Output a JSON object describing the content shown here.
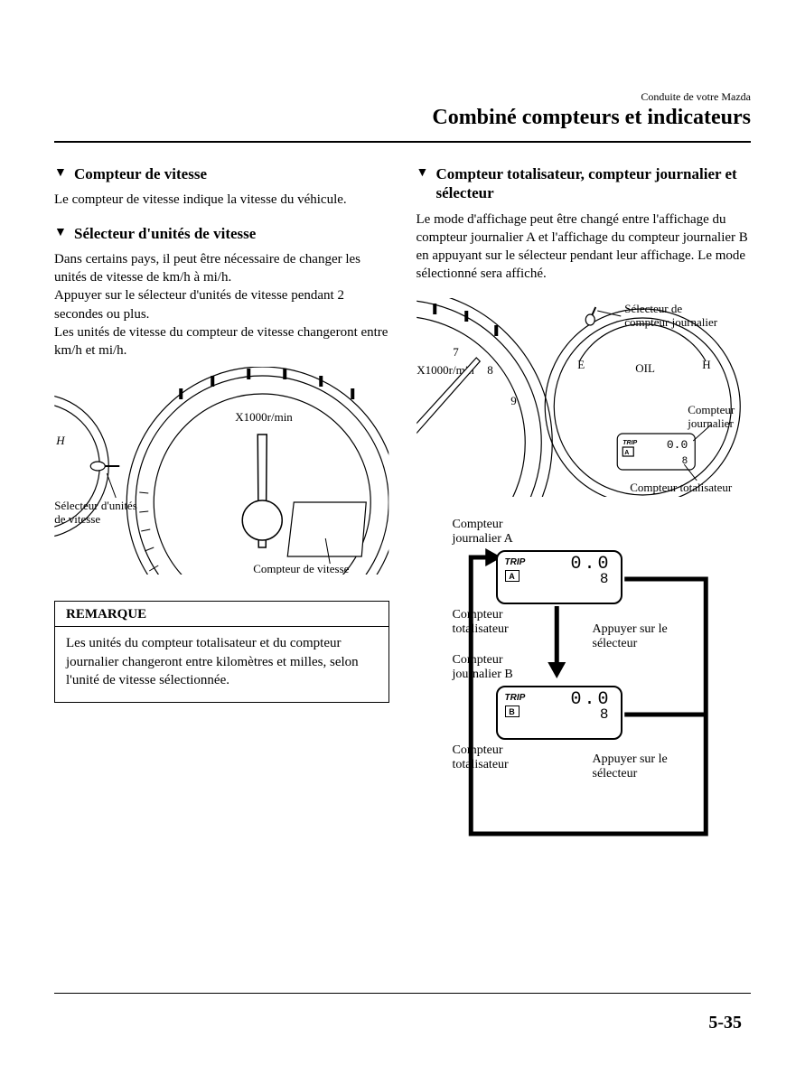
{
  "header": {
    "small": "Conduite de votre Mazda",
    "title": "Combiné compteurs et indicateurs"
  },
  "left": {
    "s1": {
      "h": "Compteur de vitesse",
      "p": "Le compteur de vitesse indique la vitesse du véhicule."
    },
    "s2": {
      "h": "Sélecteur d'unités de vitesse",
      "p1": "Dans certains pays, il peut être nécessaire de changer les unités de vitesse de km/h à mi/h.",
      "p2": "Appuyer sur le sélecteur d'unités de vitesse pendant 2 secondes ou plus.",
      "p3": "Les unités de vitesse du compteur de vitesse changeront entre km/h et mi/h."
    },
    "ill": {
      "sel_units": "Sélecteur d'unités\nde vitesse",
      "compteur_vitesse": "Compteur de vitesse",
      "x1000": "X1000r/min",
      "h": "H"
    },
    "note": {
      "title": "REMARQUE",
      "body": "Les unités du compteur totalisateur et du compteur journalier changeront entre kilomètres et milles, selon l'unité de vitesse sélectionnée."
    }
  },
  "right": {
    "s1": {
      "h": "Compteur totalisateur, compteur journalier et sélecteur",
      "p": "Le mode d'affichage peut être changé entre l'affichage du compteur journalier A et l'affichage du compteur journalier B en appuyant sur le sélecteur pendant leur affichage. Le mode sélectionné sera affiché."
    },
    "ill": {
      "sel_journ": "Sélecteur de\ncompteur journalier",
      "comp_journ": "Compteur\njournalier",
      "comp_total": "Compteur totalisateur",
      "ticks": [
        "7",
        "8",
        "9"
      ],
      "x1000": "X1000r/min",
      "gauge_e": "E",
      "gauge_h": "H",
      "oil": "OIL",
      "trip_label": "TRIP",
      "trip_letter": "A",
      "d_top": "0.0",
      "d_bot": "8"
    },
    "flow": {
      "journ_a": "Compteur\njournalier A",
      "journ_b": "Compteur\njournalier B",
      "totalisateur": "Compteur\ntotalisateur",
      "appuyer": "Appuyer sur le\nsélecteur",
      "trip_label": "TRIP",
      "letter_a": "A",
      "letter_b": "B",
      "d_top": "0.0",
      "d_bot": "8"
    }
  },
  "page_number": "5-35",
  "style": {
    "line_color": "#000000",
    "body_fontsize_pt": 11,
    "heading_fontsize_pt": 13,
    "title_fontsize_pt": 18
  }
}
